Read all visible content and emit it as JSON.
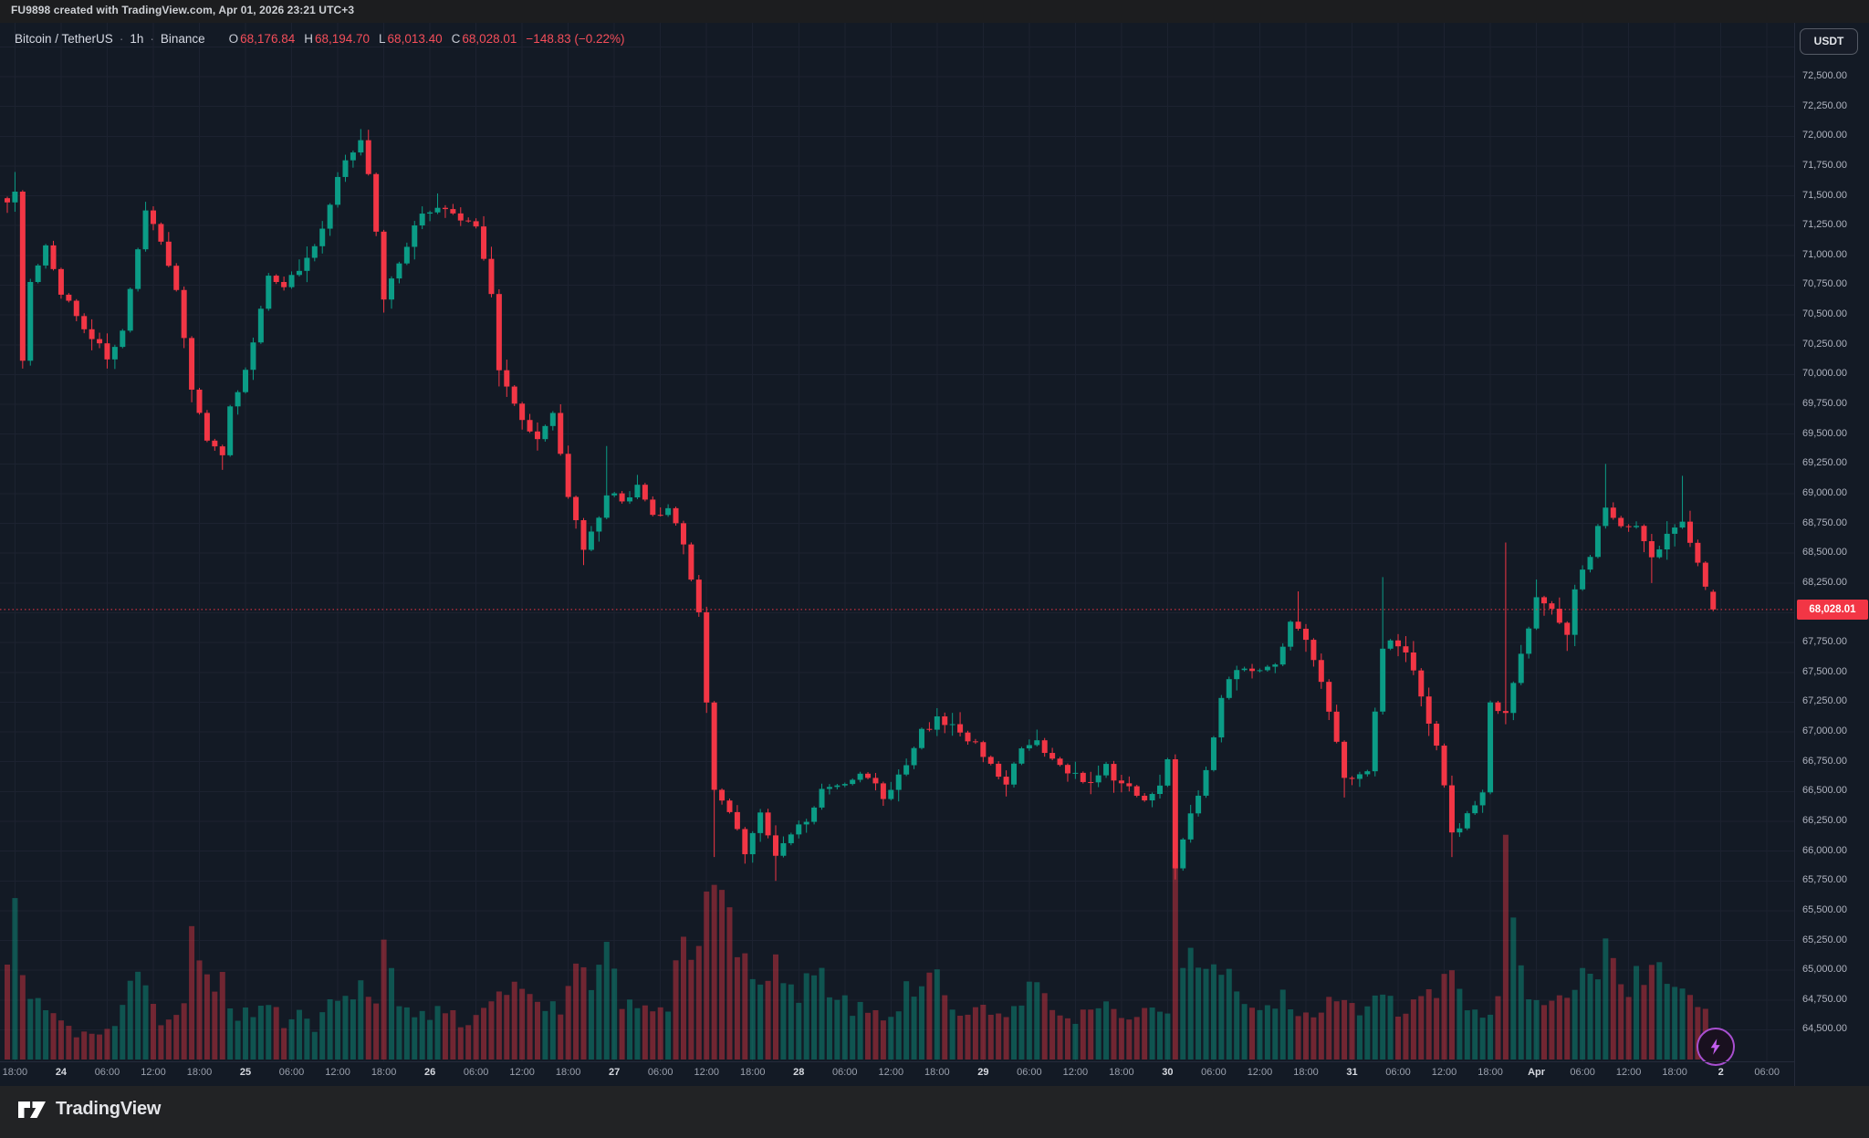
{
  "topbar": {
    "text": "FU9898 created with TradingView.com, Apr 01, 2026 23:21 UTC+3"
  },
  "header": {
    "symbol": "Bitcoin / TetherUS",
    "separator": "·",
    "interval": "1h",
    "exchange": "Binance",
    "ohlc": [
      {
        "label": "O",
        "value": "68,176.84"
      },
      {
        "label": "H",
        "value": "68,194.70"
      },
      {
        "label": "L",
        "value": "68,013.40"
      },
      {
        "label": "C",
        "value": "68,028.01"
      }
    ],
    "change": "−148.83 (−0.22%)"
  },
  "axis_toggle": {
    "label": "USDT"
  },
  "price_label": "68,028.01",
  "footer": {
    "logo_text": "TradingView"
  },
  "icons": {
    "bolt": "lightning-bolt",
    "logo_mark": "tradingview-mark"
  },
  "colors": {
    "background": "#131a25",
    "grid": "#1c2230",
    "up": "#0b9c86",
    "down": "#f23645",
    "volume_up": "rgba(11,156,134,0.45)",
    "volume_down": "rgba(242,54,69,0.42)",
    "price_line": "#f23645"
  },
  "chart_data": {
    "type": "candlestick",
    "symbol": "BTCUSDT",
    "exchange": "Binance",
    "interval_hours": 1,
    "start_time": "Mar 23 17:00",
    "candle_count": 223,
    "first_open": 71480,
    "last_price": 68028.01,
    "last_candle": {
      "open": 68176.84,
      "high": 68194.7,
      "low": 68013.4,
      "close": 68028.01
    },
    "y_axis": {
      "label_max": 72500,
      "label_min": 64500,
      "step": 250
    },
    "price_path": [
      [
        0,
        71480
      ],
      [
        1,
        71500
      ],
      [
        2,
        70150
      ],
      [
        3,
        70750
      ],
      [
        5,
        71050
      ],
      [
        7,
        70700
      ],
      [
        10,
        70400
      ],
      [
        13,
        70150
      ],
      [
        15,
        70350
      ],
      [
        18,
        71350
      ],
      [
        20,
        71150
      ],
      [
        22,
        70700
      ],
      [
        24,
        69900
      ],
      [
        26,
        69450
      ],
      [
        28,
        69300
      ],
      [
        29,
        69700
      ],
      [
        32,
        70250
      ],
      [
        34,
        70850
      ],
      [
        36,
        70750
      ],
      [
        39,
        70950
      ],
      [
        41,
        71200
      ],
      [
        43,
        71650
      ],
      [
        46,
        72000
      ],
      [
        47,
        71700
      ],
      [
        49,
        70650
      ],
      [
        52,
        71100
      ],
      [
        54,
        71350
      ],
      [
        56,
        71400
      ],
      [
        59,
        71300
      ],
      [
        61,
        71250
      ],
      [
        63,
        70700
      ],
      [
        64,
        70050
      ],
      [
        66,
        69750
      ],
      [
        69,
        69450
      ],
      [
        71,
        69650
      ],
      [
        73,
        69000
      ],
      [
        75,
        68500
      ],
      [
        77,
        68800
      ],
      [
        78,
        69000
      ],
      [
        80,
        68950
      ],
      [
        82,
        69050
      ],
      [
        84,
        68800
      ],
      [
        86,
        68850
      ],
      [
        88,
        68600
      ],
      [
        90,
        68000
      ],
      [
        92,
        66500
      ],
      [
        94,
        66350
      ],
      [
        96,
        66000
      ],
      [
        98,
        66300
      ],
      [
        100,
        65950
      ],
      [
        102,
        66150
      ],
      [
        104,
        66250
      ],
      [
        106,
        66500
      ],
      [
        108,
        66550
      ],
      [
        110,
        66600
      ],
      [
        112,
        66650
      ],
      [
        114,
        66450
      ],
      [
        117,
        66700
      ],
      [
        119,
        67000
      ],
      [
        121,
        67100
      ],
      [
        123,
        67050
      ],
      [
        125,
        66950
      ],
      [
        128,
        66750
      ],
      [
        130,
        66550
      ],
      [
        132,
        66850
      ],
      [
        134,
        66900
      ],
      [
        136,
        66750
      ],
      [
        139,
        66650
      ],
      [
        141,
        66550
      ],
      [
        143,
        66700
      ],
      [
        145,
        66550
      ],
      [
        148,
        66450
      ],
      [
        150,
        66550
      ],
      [
        151,
        66750
      ],
      [
        152,
        65880
      ],
      [
        154,
        66350
      ],
      [
        156,
        66650
      ],
      [
        158,
        67300
      ],
      [
        160,
        67550
      ],
      [
        163,
        67500
      ],
      [
        165,
        67600
      ],
      [
        167,
        67900
      ],
      [
        169,
        67800
      ],
      [
        171,
        67450
      ],
      [
        173,
        66900
      ],
      [
        174,
        66600
      ],
      [
        177,
        66650
      ],
      [
        179,
        67700
      ],
      [
        180,
        67800
      ],
      [
        182,
        67700
      ],
      [
        184,
        67300
      ],
      [
        186,
        66900
      ],
      [
        188,
        66150
      ],
      [
        190,
        66300
      ],
      [
        192,
        66500
      ],
      [
        193,
        67250
      ],
      [
        195,
        67150
      ],
      [
        197,
        67650
      ],
      [
        199,
        68100
      ],
      [
        201,
        68050
      ],
      [
        203,
        67850
      ],
      [
        204,
        68200
      ],
      [
        206,
        68500
      ],
      [
        208,
        68900
      ],
      [
        210,
        68700
      ],
      [
        212,
        68700
      ],
      [
        214,
        68450
      ],
      [
        216,
        68650
      ],
      [
        218,
        68800
      ],
      [
        220,
        68400
      ],
      [
        222,
        68028
      ]
    ],
    "wick_highs": [
      [
        1,
        71700
      ],
      [
        18,
        71450
      ],
      [
        46,
        72060
      ],
      [
        56,
        71520
      ],
      [
        78,
        69400
      ],
      [
        121,
        67200
      ],
      [
        134,
        67020
      ],
      [
        168,
        68180
      ],
      [
        179,
        68300
      ],
      [
        195,
        68590
      ],
      [
        199,
        68280
      ],
      [
        208,
        69250
      ],
      [
        218,
        69150
      ]
    ],
    "wick_lows": [
      [
        2,
        70050
      ],
      [
        13,
        70050
      ],
      [
        28,
        69200
      ],
      [
        49,
        70520
      ],
      [
        64,
        69900
      ],
      [
        75,
        68400
      ],
      [
        92,
        65950
      ],
      [
        100,
        65750
      ],
      [
        114,
        66380
      ],
      [
        152,
        65780
      ],
      [
        174,
        66450
      ],
      [
        188,
        65950
      ],
      [
        203,
        67680
      ],
      [
        214,
        68250
      ]
    ],
    "volume_path": [
      [
        0,
        62
      ],
      [
        1,
        90
      ],
      [
        2,
        55
      ],
      [
        3,
        32
      ],
      [
        5,
        26
      ],
      [
        7,
        18
      ],
      [
        9,
        11
      ],
      [
        11,
        13
      ],
      [
        13,
        20
      ],
      [
        15,
        24
      ],
      [
        17,
        58
      ],
      [
        19,
        24
      ],
      [
        21,
        18
      ],
      [
        23,
        30
      ],
      [
        24,
        70
      ],
      [
        26,
        45
      ],
      [
        28,
        40
      ],
      [
        30,
        22
      ],
      [
        32,
        26
      ],
      [
        34,
        30
      ],
      [
        36,
        20
      ],
      [
        38,
        24
      ],
      [
        40,
        18
      ],
      [
        42,
        26
      ],
      [
        44,
        30
      ],
      [
        46,
        44
      ],
      [
        48,
        30
      ],
      [
        49,
        55
      ],
      [
        51,
        28
      ],
      [
        53,
        22
      ],
      [
        55,
        20
      ],
      [
        57,
        26
      ],
      [
        59,
        20
      ],
      [
        61,
        24
      ],
      [
        63,
        30
      ],
      [
        64,
        44
      ],
      [
        66,
        35
      ],
      [
        68,
        30
      ],
      [
        70,
        26
      ],
      [
        72,
        30
      ],
      [
        74,
        58
      ],
      [
        76,
        38
      ],
      [
        78,
        52
      ],
      [
        80,
        30
      ],
      [
        82,
        26
      ],
      [
        84,
        30
      ],
      [
        86,
        24
      ],
      [
        88,
        66
      ],
      [
        90,
        55
      ],
      [
        91,
        75
      ],
      [
        92,
        100
      ],
      [
        93,
        85
      ],
      [
        94,
        68
      ],
      [
        95,
        55
      ],
      [
        96,
        58
      ],
      [
        98,
        40
      ],
      [
        100,
        46
      ],
      [
        102,
        35
      ],
      [
        104,
        38
      ],
      [
        106,
        42
      ],
      [
        108,
        32
      ],
      [
        110,
        28
      ],
      [
        112,
        30
      ],
      [
        114,
        26
      ],
      [
        116,
        30
      ],
      [
        118,
        42
      ],
      [
        119,
        34
      ],
      [
        121,
        48
      ],
      [
        123,
        30
      ],
      [
        125,
        26
      ],
      [
        127,
        24
      ],
      [
        129,
        20
      ],
      [
        131,
        28
      ],
      [
        133,
        42
      ],
      [
        135,
        30
      ],
      [
        137,
        22
      ],
      [
        139,
        20
      ],
      [
        141,
        24
      ],
      [
        143,
        28
      ],
      [
        145,
        22
      ],
      [
        147,
        20
      ],
      [
        149,
        26
      ],
      [
        151,
        30
      ],
      [
        152,
        95
      ],
      [
        153,
        58
      ],
      [
        154,
        48
      ],
      [
        156,
        40
      ],
      [
        158,
        46
      ],
      [
        160,
        40
      ],
      [
        162,
        30
      ],
      [
        164,
        26
      ],
      [
        166,
        32
      ],
      [
        168,
        24
      ],
      [
        170,
        28
      ],
      [
        172,
        30
      ],
      [
        174,
        34
      ],
      [
        176,
        24
      ],
      [
        178,
        40
      ],
      [
        180,
        32
      ],
      [
        182,
        24
      ],
      [
        184,
        30
      ],
      [
        186,
        32
      ],
      [
        188,
        42
      ],
      [
        190,
        28
      ],
      [
        192,
        24
      ],
      [
        194,
        30
      ],
      [
        195,
        98
      ],
      [
        197,
        44
      ],
      [
        199,
        36
      ],
      [
        201,
        32
      ],
      [
        203,
        38
      ],
      [
        205,
        46
      ],
      [
        207,
        40
      ],
      [
        208,
        52
      ],
      [
        210,
        38
      ],
      [
        212,
        44
      ],
      [
        214,
        46
      ],
      [
        216,
        40
      ],
      [
        218,
        34
      ],
      [
        220,
        28
      ],
      [
        222,
        16
      ]
    ],
    "x_ticks": [
      {
        "i": 1,
        "label": "18:00"
      },
      {
        "i": 7,
        "label": "24",
        "major": true
      },
      {
        "i": 13,
        "label": "06:00"
      },
      {
        "i": 19,
        "label": "12:00"
      },
      {
        "i": 25,
        "label": "18:00"
      },
      {
        "i": 31,
        "label": "25",
        "major": true
      },
      {
        "i": 37,
        "label": "06:00"
      },
      {
        "i": 43,
        "label": "12:00"
      },
      {
        "i": 49,
        "label": "18:00"
      },
      {
        "i": 55,
        "label": "26",
        "major": true
      },
      {
        "i": 61,
        "label": "06:00"
      },
      {
        "i": 67,
        "label": "12:00"
      },
      {
        "i": 73,
        "label": "18:00"
      },
      {
        "i": 79,
        "label": "27",
        "major": true
      },
      {
        "i": 85,
        "label": "06:00"
      },
      {
        "i": 91,
        "label": "12:00"
      },
      {
        "i": 97,
        "label": "18:00"
      },
      {
        "i": 103,
        "label": "28",
        "major": true
      },
      {
        "i": 109,
        "label": "06:00"
      },
      {
        "i": 115,
        "label": "12:00"
      },
      {
        "i": 121,
        "label": "18:00"
      },
      {
        "i": 127,
        "label": "29",
        "major": true
      },
      {
        "i": 133,
        "label": "06:00"
      },
      {
        "i": 139,
        "label": "12:00"
      },
      {
        "i": 145,
        "label": "18:00"
      },
      {
        "i": 151,
        "label": "30",
        "major": true
      },
      {
        "i": 157,
        "label": "06:00"
      },
      {
        "i": 163,
        "label": "12:00"
      },
      {
        "i": 169,
        "label": "18:00"
      },
      {
        "i": 175,
        "label": "31",
        "major": true
      },
      {
        "i": 181,
        "label": "06:00"
      },
      {
        "i": 187,
        "label": "12:00"
      },
      {
        "i": 193,
        "label": "18:00"
      },
      {
        "i": 199,
        "label": "Apr",
        "major": true
      },
      {
        "i": 205,
        "label": "06:00"
      },
      {
        "i": 211,
        "label": "12:00"
      },
      {
        "i": 217,
        "label": "18:00"
      },
      {
        "i": 223,
        "label": "2",
        "major": true
      },
      {
        "i": 229,
        "label": "06:00"
      }
    ]
  }
}
